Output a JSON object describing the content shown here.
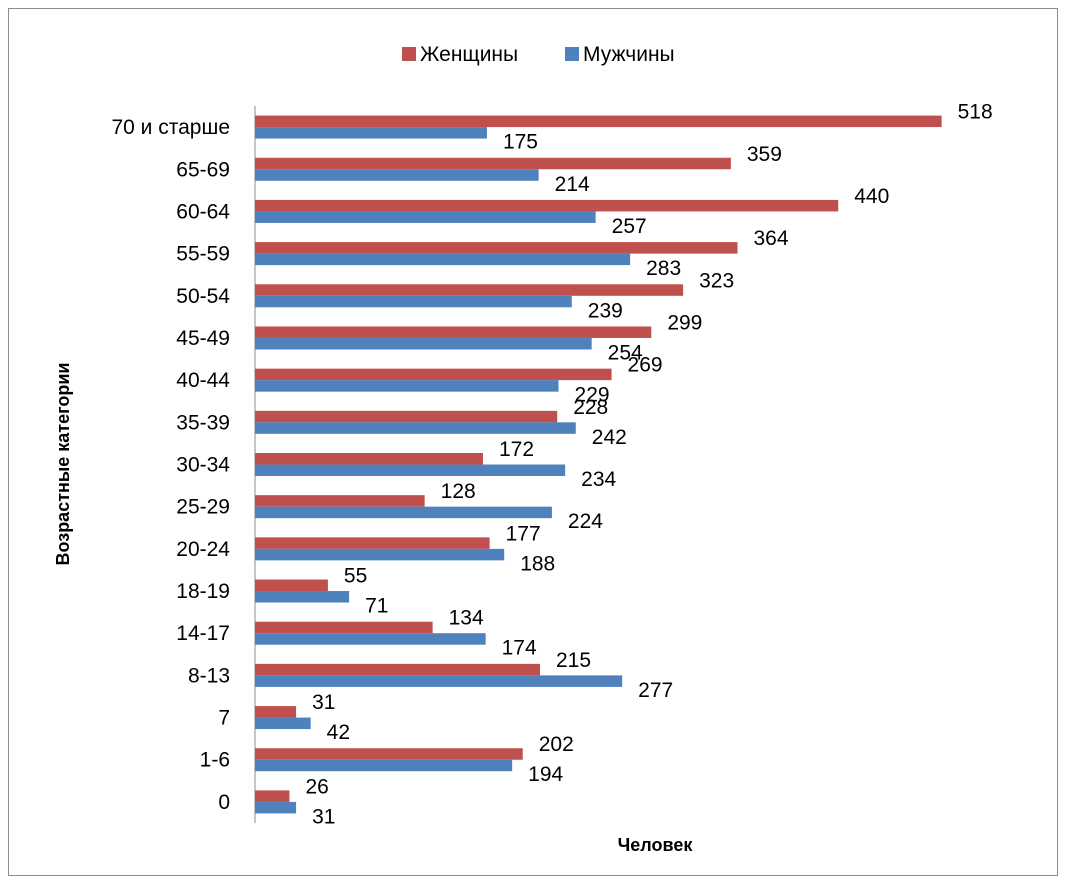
{
  "chart_data": {
    "type": "bar",
    "orientation": "horizontal",
    "categories": [
      "0",
      "1-6",
      "7",
      "8-13",
      "14-17",
      "18-19",
      "20-24",
      "25-29",
      "30-34",
      "35-39",
      "40-44",
      "45-49",
      "50-54",
      "55-59",
      "60-64",
      "65-69",
      "70 и старше"
    ],
    "series": [
      {
        "name": "Женщины",
        "color": "#c0504d",
        "values": [
          26,
          202,
          31,
          215,
          134,
          55,
          177,
          128,
          172,
          228,
          269,
          299,
          323,
          364,
          440,
          359,
          518
        ]
      },
      {
        "name": "Мужчины",
        "color": "#4f81bd",
        "values": [
          31,
          194,
          42,
          277,
          174,
          71,
          188,
          224,
          234,
          242,
          229,
          254,
          239,
          283,
          257,
          214,
          175
        ]
      }
    ],
    "xlabel": "Человек",
    "ylabel": "Возрастные категории",
    "xlim": [
      0,
      520
    ],
    "grid": false,
    "legend_position": "top",
    "data_labels": true
  }
}
